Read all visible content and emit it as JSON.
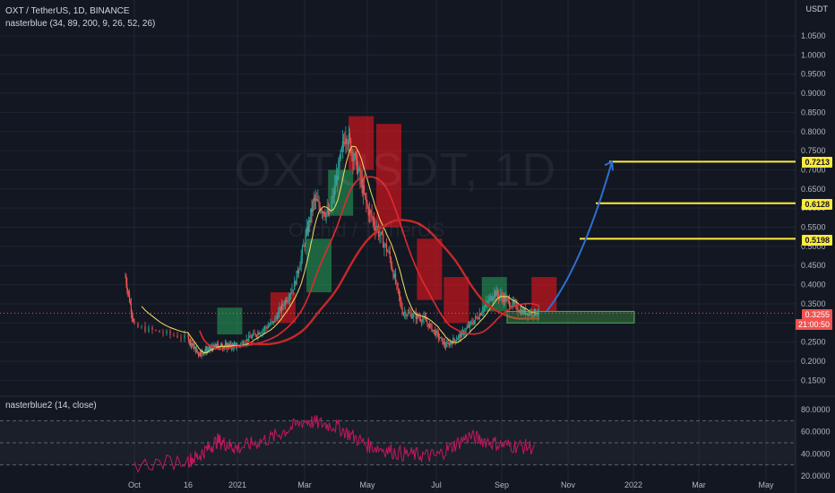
{
  "header": {
    "symbol_line": "OXT / TetherUS, 1D, BINANCE",
    "indicator_line": "nasterblue (34, 89, 200, 9, 26, 52, 26)"
  },
  "watermark": {
    "ticker": "OXTUSDT, 1D",
    "name": "Orchid / TetherUS"
  },
  "price_axis": {
    "unit": "USDT",
    "ticks": [
      "1.0500",
      "1.0000",
      "0.9500",
      "0.9000",
      "0.8500",
      "0.8000",
      "0.7500",
      "0.7000",
      "0.6500",
      "0.6000",
      "0.5500",
      "0.5000",
      "0.4500",
      "0.4000",
      "0.3500",
      "0.3000",
      "0.2500",
      "0.2000",
      "0.1500"
    ]
  },
  "levels": [
    {
      "label": "0.7213",
      "value": 0.7213
    },
    {
      "label": "0.6128",
      "value": 0.6128
    },
    {
      "label": "0.5198",
      "value": 0.5198
    }
  ],
  "current": {
    "price": "0.3255",
    "countdown": "21:00:50",
    "value": 0.3255
  },
  "time_axis": [
    "Oct",
    "16",
    "2021",
    "Mar",
    "May",
    "Jul",
    "Sep",
    "Nov",
    "2022",
    "Mar",
    "May"
  ],
  "oscillator": {
    "label": "nasterblue2 (14, close)",
    "ticks": [
      "80.0000",
      "60.0000",
      "40.0000",
      "20.0000"
    ]
  },
  "colors": {
    "background": "#131722",
    "grid": "#1f2433",
    "up": "#26a69a",
    "down": "#ef5350",
    "level": "#ffeb3b",
    "arrow": "#2f6fd1",
    "ma_fast": "#f6e05e",
    "ma_slow": "#e0292f",
    "rsi": "#c2185b"
  },
  "chart_data": {
    "type": "line",
    "title": "OXT / TetherUS, 1D, BINANCE",
    "series": [
      {
        "name": "OXT / TetherUS",
        "x": [
          "2020-09-20",
          "2020-10-01",
          "2020-10-16",
          "2020-11-01",
          "2020-12-01",
          "2021-01-01",
          "2021-02-01",
          "2021-02-20",
          "2021-03-10",
          "2021-03-25",
          "2021-04-10",
          "2021-04-20",
          "2021-05-01",
          "2021-05-20",
          "2021-06-01",
          "2021-06-20",
          "2021-07-10",
          "2021-07-25",
          "2021-08-10",
          "2021-08-25",
          "2021-09-05",
          "2021-09-20",
          "2021-10-05"
        ],
        "values": [
          0.42,
          0.29,
          0.26,
          0.22,
          0.24,
          0.24,
          0.3,
          0.4,
          0.62,
          0.58,
          0.8,
          0.72,
          0.6,
          0.48,
          0.33,
          0.31,
          0.24,
          0.27,
          0.32,
          0.38,
          0.36,
          0.33,
          0.3255
        ]
      }
    ],
    "ylim": [
      0.14,
      1.08
    ],
    "levels": [
      0.7213,
      0.6128,
      0.5198
    ],
    "oscillator": {
      "name": "nasterblue2 (14, close)",
      "ylim": [
        20,
        80
      ],
      "x": [
        "2020-10-01",
        "2020-11-01",
        "2020-12-01",
        "2021-01-01",
        "2021-02-01",
        "2021-03-01",
        "2021-04-01",
        "2021-05-01",
        "2021-06-01",
        "2021-07-01",
        "2021-08-01",
        "2021-09-01",
        "2021-10-01"
      ],
      "values": [
        30,
        38,
        52,
        45,
        55,
        70,
        65,
        48,
        40,
        38,
        56,
        48,
        46
      ]
    }
  }
}
